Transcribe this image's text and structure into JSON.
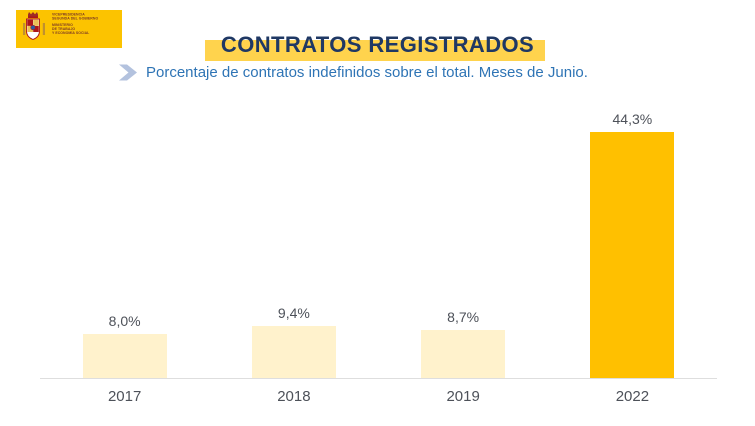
{
  "logo": {
    "background_color": "#FCC300",
    "text_color": "#7D3B24",
    "arms_red": "#AD1519",
    "lines_top": [
      "VICEPRESIDENCIA",
      "SEGUNDA DEL GOBIERNO"
    ],
    "lines_bottom": [
      "MINISTERIO",
      "DE TRABAJO",
      "Y ECONOMÍA SOCIAL"
    ]
  },
  "header": {
    "title": "CONTRATOS REGISTRADOS",
    "title_color": "#1F3864",
    "highlight_color": "#FFD34D",
    "subtitle": "Porcentaje de contratos indefinidos sobre el total. Meses de Junio.",
    "subtitle_color": "#2E74B5",
    "chevron_color": "#B3C2DE"
  },
  "chart_data": {
    "type": "bar",
    "title": "CONTRATOS REGISTRADOS",
    "subtitle": "Porcentaje de contratos indefinidos sobre el total. Meses de Junio.",
    "categories": [
      "2017",
      "2018",
      "2019",
      "2022"
    ],
    "values": [
      8.0,
      9.4,
      8.7,
      44.3
    ],
    "value_labels": [
      "8,0%",
      "9,4%",
      "8,7%",
      "44,3%"
    ],
    "bar_colors": [
      "#FFF2CC",
      "#FFF2CC",
      "#FFF2CC",
      "#FFC000"
    ],
    "xlabel": "",
    "ylabel": "",
    "ylim": [
      0,
      46
    ],
    "grid": false,
    "legend": false,
    "data_label_color": "#4D5159",
    "axis_line_color": "#DEDEDE"
  }
}
